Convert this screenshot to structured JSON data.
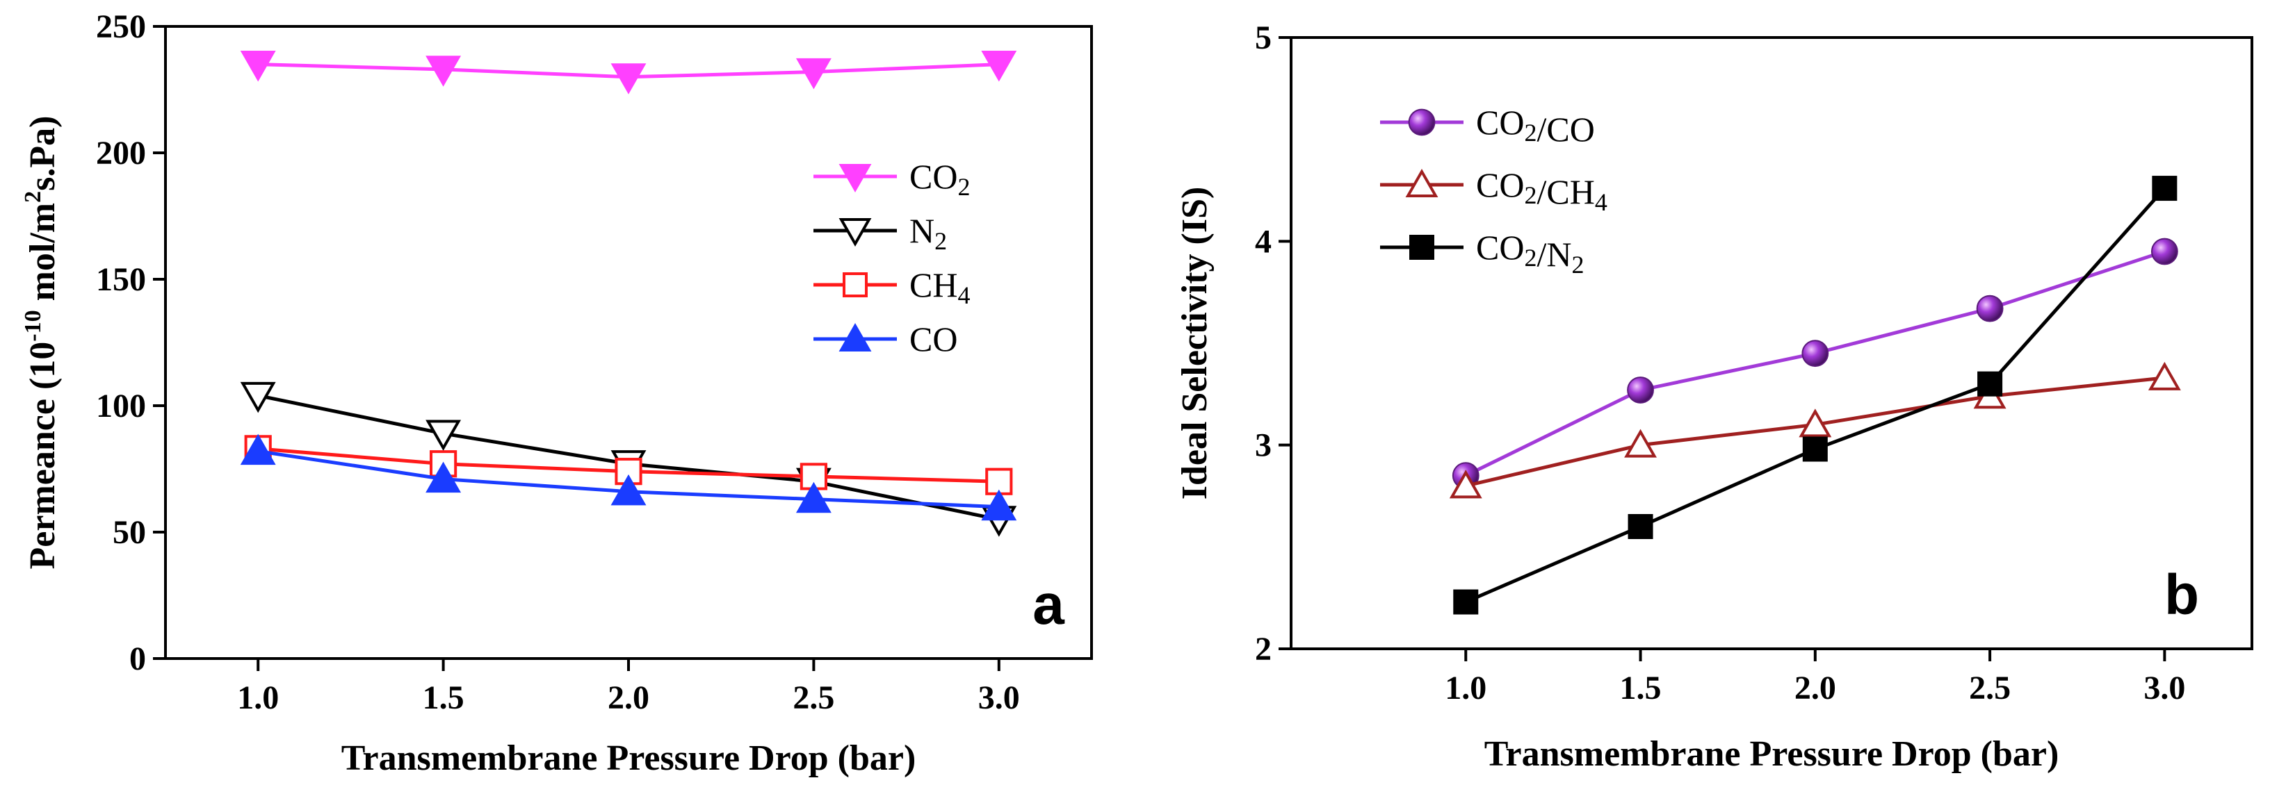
{
  "chart_data": [
    {
      "type": "line",
      "panel_label": "a",
      "xlabel": "Transmembrane Pressure Drop (bar)",
      "ylabel_parts": [
        "Permeance (10",
        "-10",
        " mol/m",
        "2",
        "s.Pa)"
      ],
      "x": [
        1.0,
        1.5,
        2.0,
        2.5,
        3.0
      ],
      "x_tick_labels": [
        "1.0",
        "1.5",
        "2.0",
        "2.5",
        "3.0"
      ],
      "xlim": [
        0.75,
        3.25
      ],
      "ylim": [
        0,
        250
      ],
      "y_ticks": [
        0,
        50,
        100,
        150,
        200,
        250
      ],
      "y_tick_labels": [
        "0",
        "50",
        "100",
        "150",
        "200",
        "250"
      ],
      "legend_position": "right",
      "series": [
        {
          "name_base": "CO",
          "name_sub": "2",
          "marker": "triangle-down-filled",
          "color": "#ff40ff",
          "values": [
            235,
            233,
            230,
            232,
            235
          ]
        },
        {
          "name_base": "N",
          "name_sub": "2",
          "marker": "triangle-down-open",
          "color": "#000000",
          "values": [
            104,
            89,
            77,
            70,
            55
          ]
        },
        {
          "name_base": "CH",
          "name_sub": "4",
          "marker": "square-open",
          "color": "#ff1a1a",
          "values": [
            83,
            77,
            74,
            72,
            70
          ]
        },
        {
          "name_base": "CO",
          "name_sub": "",
          "marker": "triangle-up-filled",
          "color": "#1a3cff",
          "values": [
            82,
            71,
            66,
            63,
            60
          ]
        }
      ]
    },
    {
      "type": "line",
      "panel_label": "b",
      "xlabel": "Transmembrane Pressure Drop (bar)",
      "ylabel": "Ideal Selectivity (IS)",
      "x": [
        1.0,
        1.5,
        2.0,
        2.5,
        3.0
      ],
      "x_tick_labels": [
        "1.0",
        "1.5",
        "2.0",
        "2.5",
        "3.0"
      ],
      "xlim": [
        0.5,
        3.25
      ],
      "ylim": [
        2,
        5
      ],
      "y_ticks": [
        2,
        3,
        4,
        5
      ],
      "y_tick_labels": [
        "2",
        "3",
        "4",
        "5"
      ],
      "legend_position": "top-left",
      "series": [
        {
          "name_base": "CO",
          "name_sub": "2",
          "name_rest": "/CO",
          "marker": "sphere",
          "color": "#a23ad8",
          "values": [
            2.85,
            3.27,
            3.45,
            3.67,
            3.95
          ]
        },
        {
          "name_base": "CO",
          "name_sub": "2",
          "name_rest": "/CH",
          "name_sub2": "4",
          "marker": "triangle-up-open",
          "color": "#a02020",
          "values": [
            2.8,
            3.0,
            3.1,
            3.24,
            3.33
          ]
        },
        {
          "name_base": "CO",
          "name_sub": "2",
          "name_rest": "/N",
          "name_sub2": "2",
          "marker": "square-filled",
          "color": "#000000",
          "values": [
            2.23,
            2.6,
            2.98,
            3.3,
            4.26
          ]
        }
      ]
    }
  ]
}
